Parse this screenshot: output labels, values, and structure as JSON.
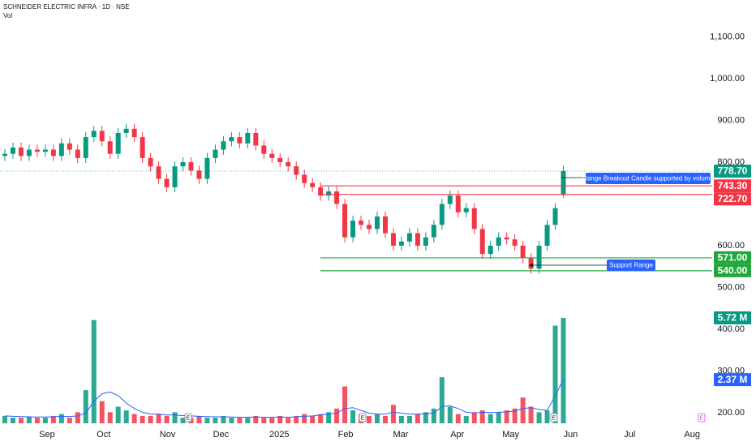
{
  "chart_data": {
    "type": "candlestick",
    "title": "SCHNEIDER ELECTRIC INFRA · 1D · NSE",
    "subtitle": "Vol",
    "up_color": "#089981",
    "down_color": "#f23645",
    "ma_color": "#2962ff",
    "open": [
      815,
      820,
      835,
      815,
      830,
      825,
      830,
      815,
      845,
      830,
      810,
      860,
      875,
      850,
      820,
      870,
      880,
      860,
      810,
      790,
      760,
      740,
      790,
      800,
      780,
      760,
      810,
      830,
      850,
      860,
      845,
      870,
      840,
      820,
      810,
      800,
      790,
      770,
      750,
      740,
      720,
      730,
      700,
      620,
      660,
      650,
      640,
      670,
      630,
      600,
      610,
      630,
      600,
      620,
      650,
      700,
      720,
      680,
      690,
      640,
      580,
      600,
      620,
      615,
      600,
      570,
      545,
      600,
      650,
      722
    ],
    "high": [
      832,
      847,
      847,
      842,
      842,
      842,
      842,
      857,
      857,
      842,
      872,
      887,
      887,
      862,
      882,
      892,
      892,
      872,
      822,
      802,
      772,
      802,
      812,
      812,
      792,
      822,
      842,
      862,
      872,
      872,
      882,
      882,
      852,
      832,
      822,
      812,
      802,
      782,
      762,
      752,
      742,
      742,
      712,
      672,
      672,
      662,
      682,
      682,
      642,
      622,
      642,
      642,
      632,
      662,
      712,
      732,
      732,
      702,
      702,
      652,
      612,
      632,
      632,
      627,
      612,
      582,
      612,
      662,
      702,
      792
    ],
    "low": [
      803,
      808,
      803,
      803,
      813,
      813,
      803,
      803,
      818,
      798,
      798,
      848,
      838,
      808,
      808,
      858,
      848,
      798,
      778,
      748,
      728,
      728,
      778,
      768,
      748,
      748,
      798,
      818,
      838,
      833,
      833,
      828,
      808,
      798,
      788,
      778,
      758,
      738,
      728,
      708,
      708,
      688,
      608,
      608,
      638,
      628,
      628,
      618,
      588,
      588,
      598,
      588,
      588,
      608,
      638,
      688,
      668,
      668,
      628,
      568,
      568,
      588,
      603,
      588,
      558,
      533,
      533,
      588,
      638,
      715
    ],
    "close": [
      820,
      835,
      815,
      830,
      825,
      830,
      815,
      845,
      830,
      810,
      860,
      875,
      850,
      820,
      870,
      880,
      860,
      810,
      790,
      760,
      740,
      790,
      800,
      780,
      760,
      810,
      830,
      850,
      860,
      845,
      870,
      840,
      820,
      810,
      800,
      790,
      770,
      750,
      740,
      720,
      730,
      700,
      620,
      660,
      650,
      640,
      670,
      630,
      600,
      610,
      630,
      600,
      620,
      650,
      700,
      720,
      680,
      690,
      640,
      580,
      600,
      620,
      615,
      600,
      570,
      545,
      600,
      650,
      690,
      778.7
    ],
    "volume": [
      0.4,
      0.3,
      0.3,
      0.35,
      0.3,
      0.3,
      0.4,
      0.5,
      0.3,
      0.6,
      1.8,
      5.6,
      1.2,
      0.6,
      0.9,
      0.7,
      0.5,
      0.4,
      0.4,
      0.5,
      0.4,
      0.6,
      0.3,
      0.3,
      0.4,
      0.3,
      0.3,
      0.4,
      0.3,
      0.3,
      0.3,
      0.4,
      0.3,
      0.3,
      0.4,
      0.3,
      0.4,
      0.5,
      0.4,
      0.5,
      0.6,
      0.8,
      2.0,
      0.7,
      0.5,
      0.4,
      0.5,
      0.4,
      1.0,
      0.4,
      0.4,
      0.5,
      0.6,
      0.8,
      2.5,
      0.9,
      0.5,
      0.4,
      0.6,
      0.7,
      0.5,
      0.6,
      0.7,
      0.8,
      1.4,
      0.9,
      0.6,
      0.7,
      5.3,
      5.72
    ],
    "volume_ma": [
      0.4,
      0.38,
      0.36,
      0.35,
      0.34,
      0.34,
      0.35,
      0.38,
      0.37,
      0.4,
      0.55,
      1.2,
      1.6,
      1.7,
      1.5,
      1.1,
      0.8,
      0.6,
      0.5,
      0.5,
      0.45,
      0.45,
      0.42,
      0.4,
      0.38,
      0.36,
      0.35,
      0.35,
      0.34,
      0.33,
      0.33,
      0.34,
      0.33,
      0.33,
      0.34,
      0.33,
      0.35,
      0.38,
      0.4,
      0.45,
      0.5,
      0.55,
      0.8,
      0.85,
      0.7,
      0.55,
      0.5,
      0.5,
      0.6,
      0.55,
      0.5,
      0.5,
      0.52,
      0.55,
      0.9,
      0.95,
      0.8,
      0.6,
      0.55,
      0.6,
      0.58,
      0.6,
      0.62,
      0.66,
      0.8,
      0.85,
      0.75,
      0.7,
      1.5,
      2.37
    ],
    "xlim": [
      -0.3,
      92.9
    ],
    "xticks": [
      {
        "value": 5.2,
        "label": "Sep"
      },
      {
        "value": 12.2,
        "label": "Oct"
      },
      {
        "value": 20.1,
        "label": "Nov"
      },
      {
        "value": 26.7,
        "label": "Dec"
      },
      {
        "value": 33.9,
        "label": "2025"
      },
      {
        "value": 42.1,
        "label": "Feb"
      },
      {
        "value": 48.9,
        "label": "Mar"
      },
      {
        "value": 55.9,
        "label": "Apr"
      },
      {
        "value": 62.5,
        "label": "May"
      },
      {
        "value": 69.9,
        "label": "Jun"
      },
      {
        "value": 77.2,
        "label": "Jul"
      },
      {
        "value": 84.9,
        "label": "Aug"
      }
    ],
    "ylim": [
      180,
      1130
    ],
    "yticks": [
      {
        "value": 1100,
        "label": "1,100.00"
      },
      {
        "value": 1000,
        "label": "1,000.00"
      },
      {
        "value": 900,
        "label": "900.00"
      },
      {
        "value": 800,
        "label": "800.00"
      },
      {
        "value": 600,
        "label": "600.00"
      },
      {
        "value": 500,
        "label": "500.00"
      },
      {
        "value": 400,
        "label": "400.00"
      },
      {
        "value": 300,
        "label": "300.00"
      },
      {
        "value": 200,
        "label": "200.00"
      }
    ],
    "volume_lim": [
      0,
      5.72
    ],
    "last_price": {
      "value": 778.7,
      "label": "778.70",
      "color": "#089981"
    },
    "levels": [
      {
        "value": 743.3,
        "label": "743.30",
        "color": "#f23645"
      },
      {
        "value": 722.7,
        "label": "722.70",
        "color": "#f23645"
      },
      {
        "value": 571,
        "label": "571.00",
        "color": "#22a73e"
      },
      {
        "value": 540,
        "label": "540.00",
        "color": "#22a73e"
      }
    ],
    "volume_last": {
      "value": 5.72,
      "label": "5.72 M",
      "color": "#089981"
    },
    "volume_ma_last": {
      "value": 2.37,
      "label": "2.37 M",
      "color": "#2962ff"
    },
    "annotations": [
      "Range Breakout Candle supported by volume",
      "Support Range"
    ],
    "event_markers": [
      "E",
      "E",
      "E",
      "E"
    ]
  }
}
